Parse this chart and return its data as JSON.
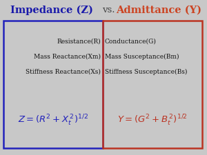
{
  "title_left": "Impedance (Z)",
  "title_vs": "vs.",
  "title_right": "Admittance (Y)",
  "title_left_color": "#1a1aaa",
  "title_vs_color": "#444444",
  "title_right_color": "#cc4422",
  "bg_color": "#c8c8c8",
  "left_box_color": "#2222bb",
  "right_box_color": "#bb3322",
  "row1_left": "Resistance(R)",
  "row1_right": "Conductance(G)",
  "row2_left": "Mass Reactance(Xm)",
  "row2_right": "Mass Susceptance(Bm)",
  "row3_left": "Stiffness Reactance(Xs)",
  "row3_right": "Stiffness Susceptance(Bs)",
  "formula_left": "$Z = (R^2 + X_t^{\\,2})^{1/2}$",
  "formula_right": "$Y = (G^2 + B_t^{\\,2})^{1/2}$",
  "text_color": "#111111",
  "title_fontsize": 10.5,
  "body_fontsize": 6.5,
  "formula_fontsize": 9.5
}
